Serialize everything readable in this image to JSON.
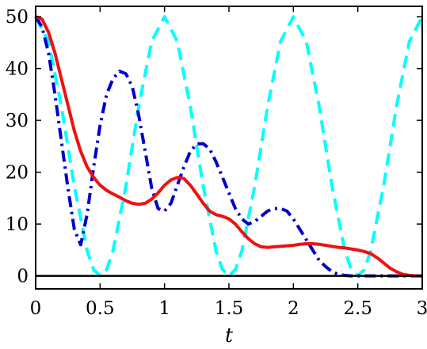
{
  "chart_data": {
    "type": "line",
    "title": "",
    "xlabel": "t",
    "ylabel": "",
    "xlim": [
      0,
      3
    ],
    "ylim": [
      -2.5,
      52
    ],
    "grid": false,
    "legend": null,
    "x_ticks": [
      "0",
      "0.5",
      "1",
      "1.5",
      "2",
      "2.5",
      "3"
    ],
    "y_ticks": [
      "0",
      "10",
      "20",
      "30",
      "40",
      "50"
    ],
    "zero_line": {
      "y": 0,
      "color": "#000000"
    },
    "series": [
      {
        "color": "#00ffff",
        "style": "dashed",
        "x": [
          0,
          0.1,
          0.2,
          0.3,
          0.4,
          0.45,
          0.5,
          0.55,
          0.6,
          0.7,
          0.8,
          0.9,
          1.0,
          1.1,
          1.2,
          1.3,
          1.4,
          1.45,
          1.5,
          1.55,
          1.6,
          1.7,
          1.8,
          1.9,
          2.0,
          2.1,
          2.2,
          2.3,
          2.4,
          2.45,
          2.5,
          2.55,
          2.6,
          2.7,
          2.8,
          2.9,
          3.0
        ],
        "y": [
          50,
          45.2,
          32.7,
          17.3,
          4.8,
          1.2,
          0,
          1.2,
          4.8,
          17.3,
          32.7,
          45.2,
          50,
          45.2,
          32.7,
          17.3,
          4.8,
          1.2,
          0,
          1.2,
          4.8,
          17.3,
          32.7,
          45.2,
          50,
          45.2,
          32.7,
          17.3,
          4.8,
          1.2,
          0,
          1.2,
          4.8,
          17.3,
          32.7,
          45.2,
          50
        ]
      },
      {
        "color": "#0000cc",
        "style": "dash-dot",
        "x": [
          0,
          0.05,
          0.1,
          0.15,
          0.2,
          0.25,
          0.3,
          0.35,
          0.4,
          0.45,
          0.5,
          0.55,
          0.6,
          0.65,
          0.7,
          0.75,
          0.8,
          0.85,
          0.9,
          0.95,
          1.0,
          1.05,
          1.1,
          1.15,
          1.2,
          1.25,
          1.3,
          1.35,
          1.4,
          1.45,
          1.5,
          1.55,
          1.6,
          1.65,
          1.7,
          1.75,
          1.8,
          1.85,
          1.9,
          1.95,
          2.0,
          2.05,
          2.1,
          2.15,
          2.2,
          2.25,
          2.3,
          2.35,
          2.4,
          2.45,
          2.5,
          2.55,
          2.6,
          2.65,
          2.7,
          2.75,
          2.8,
          2.85,
          2.9,
          2.95,
          3.0
        ],
        "y": [
          50,
          48,
          43,
          35,
          26,
          17,
          9,
          6,
          12,
          21,
          29,
          35,
          38,
          39.5,
          39,
          36.5,
          31,
          24,
          17,
          13,
          12.5,
          14,
          17.5,
          21,
          24,
          25.5,
          25.5,
          24.5,
          22,
          19,
          16,
          13,
          11,
          10,
          10.5,
          11.5,
          12.5,
          13,
          13,
          12.5,
          11,
          9,
          7,
          5,
          3,
          1.8,
          0.8,
          0.3,
          0.1,
          0,
          0,
          0,
          0,
          0,
          0,
          0,
          0,
          0,
          0,
          0,
          0
        ]
      },
      {
        "color": "#ee1111",
        "style": "solid",
        "x": [
          0,
          0.05,
          0.1,
          0.15,
          0.2,
          0.25,
          0.3,
          0.35,
          0.4,
          0.45,
          0.5,
          0.55,
          0.6,
          0.65,
          0.7,
          0.75,
          0.8,
          0.85,
          0.9,
          0.95,
          1.0,
          1.05,
          1.1,
          1.15,
          1.2,
          1.25,
          1.3,
          1.35,
          1.4,
          1.45,
          1.5,
          1.55,
          1.6,
          1.65,
          1.7,
          1.75,
          1.8,
          1.85,
          1.9,
          1.95,
          2.0,
          2.05,
          2.1,
          2.15,
          2.2,
          2.25,
          2.3,
          2.35,
          2.4,
          2.45,
          2.5,
          2.55,
          2.6,
          2.65,
          2.7,
          2.75,
          2.8,
          2.85,
          2.9,
          2.95,
          3.0
        ],
        "y": [
          50,
          49.5,
          47,
          43,
          38,
          33,
          28,
          24,
          21,
          19,
          17.5,
          16.5,
          15.8,
          15.2,
          14.5,
          14,
          13.8,
          14,
          14.8,
          16,
          17.5,
          18.5,
          19,
          18.8,
          17.5,
          15.8,
          14,
          12.5,
          11.8,
          11.5,
          11,
          10,
          8.5,
          7.2,
          6.2,
          5.6,
          5.5,
          5.6,
          5.7,
          5.8,
          5.9,
          6.1,
          6.2,
          6.2,
          6.1,
          5.9,
          5.7,
          5.5,
          5.4,
          5.2,
          5.0,
          4.7,
          4.3,
          3.5,
          2.5,
          1.5,
          0.8,
          0.3,
          0.1,
          0,
          0
        ]
      }
    ]
  }
}
